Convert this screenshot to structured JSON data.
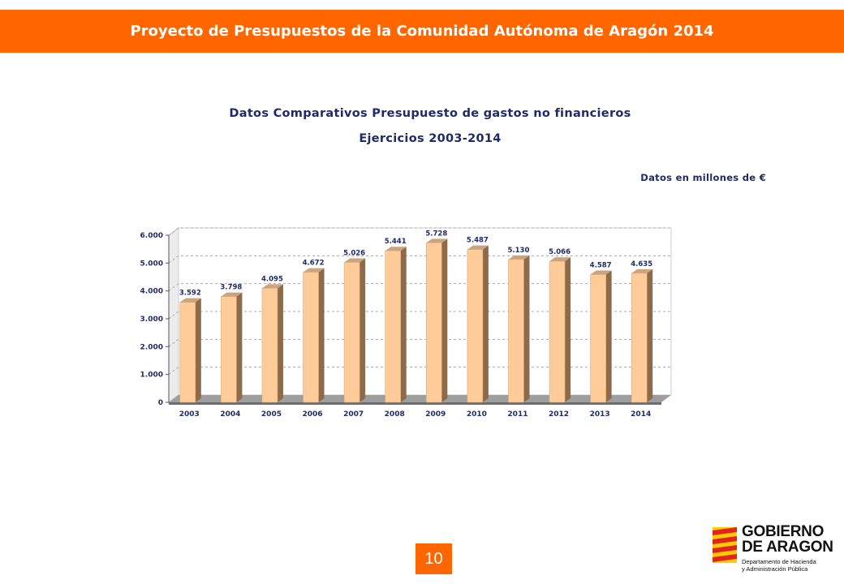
{
  "header": {
    "title": "Proyecto de Presupuestos de la Comunidad Autónoma de Aragón 2014"
  },
  "chart_heading": {
    "line1": "Datos Comparativos Presupuesto de gastos no financieros",
    "line2": "Ejercicios 2003-2014"
  },
  "units_note": "Datos en millones de €",
  "chart_data": {
    "type": "bar",
    "categories": [
      "2003",
      "2004",
      "2005",
      "2006",
      "2007",
      "2008",
      "2009",
      "2010",
      "2011",
      "2012",
      "2013",
      "2014"
    ],
    "values": [
      3592,
      3798,
      4095,
      4672,
      5026,
      5441,
      5728,
      5487,
      5130,
      5066,
      4587,
      4635
    ],
    "value_labels": [
      "3.592",
      "3.798",
      "4.095",
      "4.672",
      "5.026",
      "5.441",
      "5.728",
      "5.487",
      "5.130",
      "5.066",
      "4.587",
      "4.635"
    ],
    "ylim": [
      0,
      6000
    ],
    "yticks": [
      0,
      1000,
      2000,
      3000,
      4000,
      5000,
      6000
    ],
    "ytick_labels": [
      "0",
      "1.000",
      "2.000",
      "3.000",
      "4.000",
      "5.000",
      "6.000"
    ],
    "grid": true,
    "style": "3d",
    "bar_color": "#ffcc99",
    "bar_side_color": "#8c6a4a",
    "legend": "none"
  },
  "page_number": "10",
  "logo": {
    "line1": "GOBIERNO",
    "line2": "DE ARAGON",
    "sub1": "Departamento de Hacienda",
    "sub2": "y Administración Pública"
  },
  "colors": {
    "accent": "#ff6600",
    "title_text": "#1f2a6b"
  }
}
